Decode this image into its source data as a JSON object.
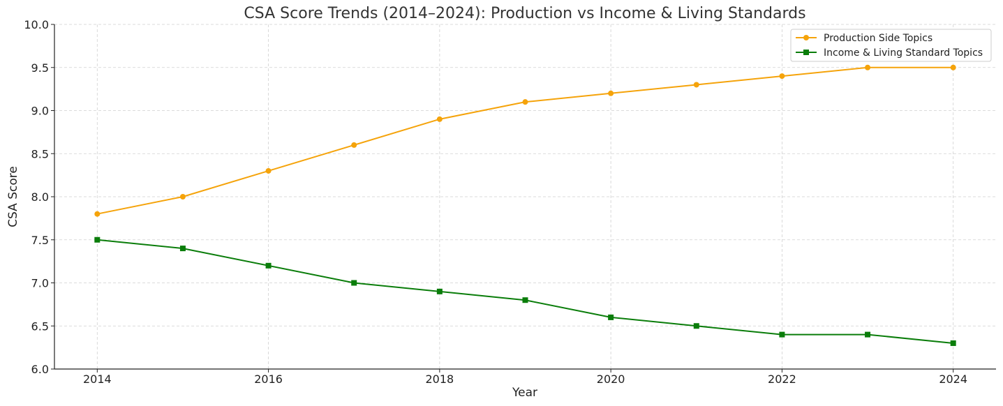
{
  "chart_data": {
    "type": "line",
    "title": "CSA Score Trends (2014–2024): Production vs Income & Living Standards",
    "xlabel": "Year",
    "ylabel": "CSA Score",
    "x": [
      2014,
      2015,
      2016,
      2017,
      2018,
      2019,
      2020,
      2021,
      2022,
      2023,
      2024
    ],
    "xlim": [
      2013.5,
      2024.5
    ],
    "ylim": [
      6.0,
      10.0
    ],
    "x_ticks": [
      2014,
      2016,
      2018,
      2020,
      2022,
      2024
    ],
    "x_tick_labels": [
      "2014",
      "2016",
      "2018",
      "2020",
      "2022",
      "2024"
    ],
    "y_ticks": [
      6.0,
      6.5,
      7.0,
      7.5,
      8.0,
      8.5,
      9.0,
      9.5,
      10.0
    ],
    "y_tick_labels": [
      "6.0",
      "6.5",
      "7.0",
      "7.5",
      "8.0",
      "8.5",
      "9.0",
      "9.5",
      "10.0"
    ],
    "grid": true,
    "legend_position": "top-right",
    "series": [
      {
        "name": "Production Side Topics",
        "color": "#f5a30a",
        "marker": "circle",
        "values": [
          7.8,
          8.0,
          8.3,
          8.6,
          8.9,
          9.1,
          9.2,
          9.3,
          9.4,
          9.5,
          9.5
        ]
      },
      {
        "name": "Income & Living Standard Topics",
        "color": "#0a7d0a",
        "marker": "square",
        "values": [
          7.5,
          7.4,
          7.2,
          7.0,
          6.9,
          6.8,
          6.6,
          6.5,
          6.4,
          6.4,
          6.3
        ]
      }
    ]
  }
}
